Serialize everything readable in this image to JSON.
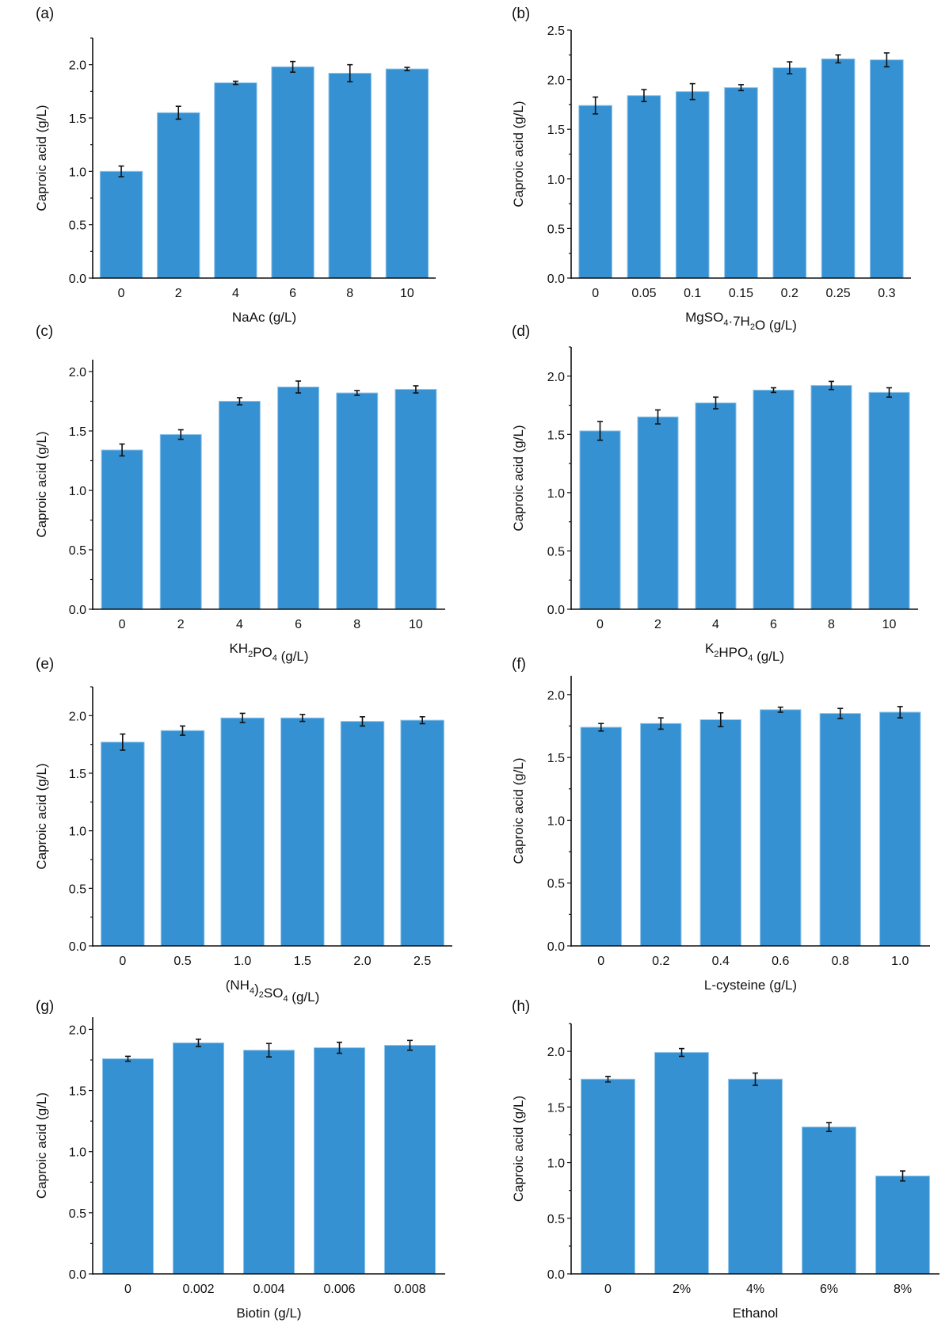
{
  "colors": {
    "bar": "#3591d2",
    "bar_edge": "#8fc4ea",
    "axis": "#111111",
    "error_bar": "#111111"
  },
  "chart_data": [
    {
      "type": "bar",
      "panel": "(a)",
      "ylabel": "Caproic acid (g/L)",
      "xlabel": [
        {
          "t": "NaAc (g/L)"
        }
      ],
      "categories": [
        "0",
        "2",
        "4",
        "6",
        "8",
        "10"
      ],
      "values": [
        1.0,
        1.55,
        1.83,
        1.98,
        1.92,
        1.96
      ],
      "errors": [
        0.05,
        0.06,
        0.015,
        0.05,
        0.08,
        0.015
      ],
      "ylim": [
        0,
        2.25
      ],
      "yticks": [
        "0.0",
        "0.5",
        "1.0",
        "1.5",
        "2.0"
      ],
      "grid": false
    },
    {
      "type": "bar",
      "panel": "(b)",
      "ylabel": "Caproic acid (g/L)",
      "xlabel": [
        {
          "t": "MgSO"
        },
        {
          "sub": "4"
        },
        {
          "t": "·7H"
        },
        {
          "sub": "2"
        },
        {
          "t": "O (g/L)"
        }
      ],
      "categories": [
        "0",
        "0.05",
        "0.1",
        "0.15",
        "0.2",
        "0.25",
        "0.3"
      ],
      "values": [
        1.74,
        1.84,
        1.88,
        1.92,
        2.12,
        2.21,
        2.2
      ],
      "errors": [
        0.085,
        0.06,
        0.08,
        0.03,
        0.06,
        0.04,
        0.07
      ],
      "ylim": [
        0,
        2.5
      ],
      "yticks": [
        "0.0",
        "0.5",
        "1.0",
        "1.5",
        "2.0",
        "2.5"
      ],
      "grid": false
    },
    {
      "type": "bar",
      "panel": "(c)",
      "ylabel": "Caproic acid (g/L)",
      "xlabel": [
        {
          "t": "KH"
        },
        {
          "sub": "2"
        },
        {
          "t": "PO"
        },
        {
          "sub": "4"
        },
        {
          "t": " (g/L)"
        }
      ],
      "categories": [
        "0",
        "2",
        "4",
        "6",
        "8",
        "10"
      ],
      "values": [
        1.34,
        1.47,
        1.75,
        1.87,
        1.82,
        1.85
      ],
      "errors": [
        0.05,
        0.04,
        0.03,
        0.05,
        0.02,
        0.03
      ],
      "ylim": [
        0,
        2.1
      ],
      "yticks": [
        "0.0",
        "0.5",
        "1.0",
        "1.5",
        "2.0"
      ],
      "grid": false
    },
    {
      "type": "bar",
      "panel": "(d)",
      "ylabel": "Caproic acid (g/L)",
      "xlabel": [
        {
          "t": "K"
        },
        {
          "sub": "2"
        },
        {
          "t": "HPO"
        },
        {
          "sub": "4"
        },
        {
          "t": " (g/L)"
        }
      ],
      "categories": [
        "0",
        "2",
        "4",
        "6",
        "8",
        "10"
      ],
      "values": [
        1.53,
        1.65,
        1.77,
        1.88,
        1.92,
        1.86
      ],
      "errors": [
        0.08,
        0.06,
        0.05,
        0.02,
        0.035,
        0.04
      ],
      "ylim": [
        0,
        2.25
      ],
      "yticks": [
        "0.0",
        "0.5",
        "1.0",
        "1.5",
        "2.0"
      ],
      "grid": false
    },
    {
      "type": "bar",
      "panel": "(e)",
      "ylabel": "Caproic acid (g/L)",
      "xlabel": [
        {
          "t": "(NH"
        },
        {
          "sub": "4"
        },
        {
          "t": ")"
        },
        {
          "sub": "2"
        },
        {
          "t": "SO"
        },
        {
          "sub": "4"
        },
        {
          "t": " (g/L)"
        }
      ],
      "categories": [
        "0",
        "0.5",
        "1.0",
        "1.5",
        "2.0",
        "2.5"
      ],
      "values": [
        1.77,
        1.87,
        1.98,
        1.98,
        1.95,
        1.96
      ],
      "errors": [
        0.07,
        0.04,
        0.04,
        0.03,
        0.04,
        0.03
      ],
      "ylim": [
        0,
        2.25
      ],
      "yticks": [
        "0.0",
        "0.5",
        "1.0",
        "1.5",
        "2.0"
      ],
      "grid": false
    },
    {
      "type": "bar",
      "panel": "(f)",
      "ylabel": "Caproic acid (g/L)",
      "xlabel": [
        {
          "t": "L-cysteine (g/L)"
        }
      ],
      "categories": [
        "0",
        "0.2",
        "0.4",
        "0.6",
        "0.8",
        "1.0"
      ],
      "values": [
        1.74,
        1.77,
        1.8,
        1.88,
        1.85,
        1.86
      ],
      "errors": [
        0.03,
        0.045,
        0.055,
        0.02,
        0.04,
        0.045
      ],
      "ylim": [
        0,
        2.15
      ],
      "yticks": [
        "0.0",
        "0.5",
        "1.0",
        "1.5",
        "2.0"
      ],
      "grid": false
    },
    {
      "type": "bar",
      "panel": "(g)",
      "ylabel": "Caproic acid (g/L)",
      "xlabel": [
        {
          "t": "Biotin (g/L)"
        }
      ],
      "categories": [
        "0",
        "0.002",
        "0.004",
        "0.006",
        "0.008"
      ],
      "values": [
        1.76,
        1.89,
        1.83,
        1.85,
        1.87
      ],
      "errors": [
        0.02,
        0.03,
        0.055,
        0.045,
        0.04
      ],
      "ylim": [
        0,
        2.1
      ],
      "yticks": [
        "0.0",
        "0.5",
        "1.0",
        "1.5",
        "2.0"
      ],
      "grid": false
    },
    {
      "type": "bar",
      "panel": "(h)",
      "ylabel": "Caproic acid (g/L)",
      "xlabel": [
        {
          "t": "Ethanol"
        }
      ],
      "categories": [
        "0",
        "2%",
        "4%",
        "6%",
        "8%"
      ],
      "values": [
        1.75,
        1.99,
        1.75,
        1.32,
        0.88
      ],
      "errors": [
        0.025,
        0.035,
        0.055,
        0.04,
        0.045
      ],
      "ylim": [
        0,
        2.25
      ],
      "yticks": [
        "0.0",
        "0.5",
        "1.0",
        "1.5",
        "2.0"
      ],
      "grid": false
    }
  ]
}
